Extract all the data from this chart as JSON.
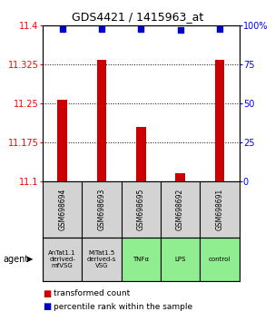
{
  "title": "GDS4421 / 1415963_at",
  "samples": [
    "GSM698694",
    "GSM698693",
    "GSM698695",
    "GSM698692",
    "GSM698691"
  ],
  "agents": [
    "AnTat1.1\nderived-\nmfVSG",
    "MiTat1.5\nderived-s\nVSG",
    "TNFα",
    "LPS",
    "control"
  ],
  "agent_colors": [
    "#d3d3d3",
    "#d3d3d3",
    "#90ee90",
    "#90ee90",
    "#90ee90"
  ],
  "red_values": [
    11.258,
    11.335,
    11.205,
    11.115,
    11.335
  ],
  "blue_values": [
    98,
    98,
    98,
    97,
    98
  ],
  "ymin": 11.1,
  "ymax": 11.4,
  "y_ticks": [
    11.1,
    11.175,
    11.25,
    11.325,
    11.4
  ],
  "y_tick_labels": [
    "11.1",
    "11.175",
    "11.25",
    "11.325",
    "11.4"
  ],
  "right_ticks": [
    0,
    25,
    50,
    75,
    100
  ],
  "right_tick_labels": [
    "0",
    "25",
    "50",
    "75",
    "100%"
  ],
  "bar_color": "#cc0000",
  "dot_color": "#0000cc",
  "background_color": "#ffffff",
  "legend_red_label": "transformed count",
  "legend_blue_label": "percentile rank within the sample",
  "bar_width": 0.25
}
